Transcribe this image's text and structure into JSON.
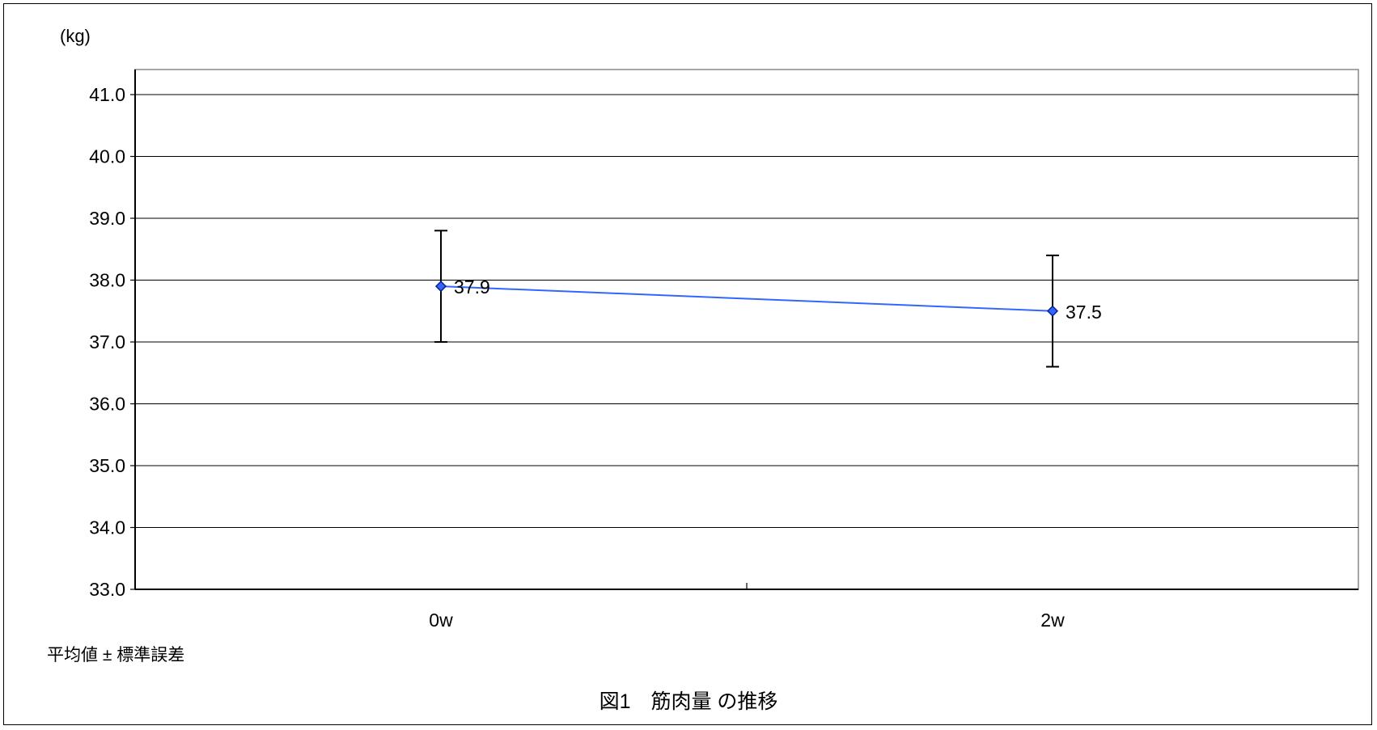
{
  "chart_data": {
    "type": "line",
    "title": "図1　筋肉量 の推移",
    "ylabel": "(kg)",
    "note": "平均値 ± 標準誤差",
    "categories": [
      "0w",
      "2w"
    ],
    "series": [
      {
        "values": [
          37.9,
          37.5
        ],
        "labels": [
          "37.9",
          "37.5"
        ],
        "error_low": [
          37.0,
          36.6
        ],
        "error_high": [
          38.8,
          38.4
        ],
        "color": "#3366ff",
        "marker_color": "#0a1e8c"
      }
    ],
    "ylim": [
      33.0,
      41.0
    ],
    "yticks": [
      33.0,
      34.0,
      35.0,
      36.0,
      37.0,
      38.0,
      39.0,
      40.0,
      41.0
    ],
    "ytick_labels": [
      "33.0",
      "34.0",
      "35.0",
      "36.0",
      "37.0",
      "38.0",
      "39.0",
      "40.0",
      "41.0"
    ],
    "grid": true,
    "legend": "none"
  }
}
